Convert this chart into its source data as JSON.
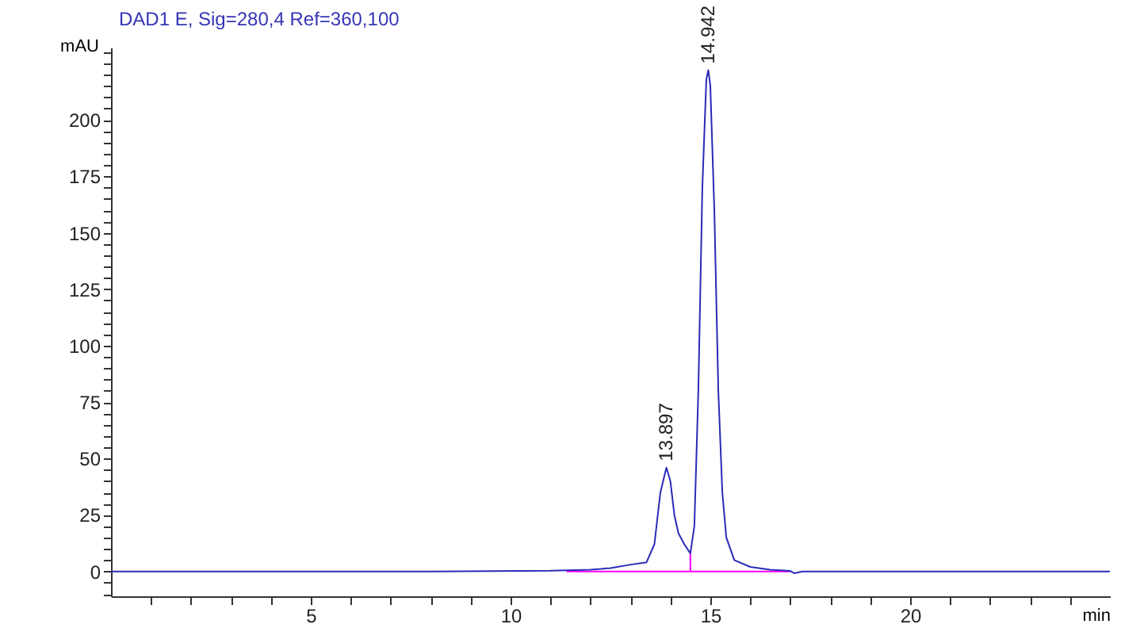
{
  "chart_data": {
    "type": "line",
    "title": "DAD1 E, Sig=280,4 Ref=360,100",
    "xlabel": "min",
    "ylabel": "mAU",
    "xlim": [
      0,
      25
    ],
    "ylim": [
      -11,
      232
    ],
    "xticks": [
      {
        "value": 1,
        "label": null
      },
      {
        "value": 2,
        "label": null
      },
      {
        "value": 3,
        "label": null
      },
      {
        "value": 4,
        "label": null
      },
      5,
      {
        "value": 6,
        "label": null
      },
      {
        "value": 7,
        "label": null
      },
      {
        "value": 8,
        "label": null
      },
      {
        "value": 9,
        "label": null
      },
      10,
      {
        "value": 11,
        "label": null
      },
      {
        "value": 12,
        "label": null
      },
      {
        "value": 13,
        "label": null
      },
      {
        "value": 14,
        "label": null
      },
      15,
      {
        "value": 16,
        "label": null
      },
      {
        "value": 17,
        "label": null
      },
      {
        "value": 18,
        "label": null
      },
      {
        "value": 19,
        "label": null
      },
      20,
      {
        "value": 21,
        "label": null
      },
      {
        "value": 22,
        "label": null
      },
      {
        "value": 23,
        "label": null
      },
      {
        "value": 24,
        "label": null
      }
    ],
    "yticks": [
      {
        "value": -10,
        "label": null
      },
      {
        "value": -5,
        "label": null
      },
      0,
      {
        "value": 5,
        "label": null
      },
      {
        "value": 10,
        "label": null
      },
      {
        "value": 15,
        "label": null
      },
      {
        "value": 20,
        "label": null
      },
      25,
      {
        "value": 30,
        "label": null
      },
      {
        "value": 35,
        "label": null
      },
      {
        "value": 40,
        "label": null
      },
      {
        "value": 45,
        "label": null
      },
      50,
      {
        "value": 55,
        "label": null
      },
      {
        "value": 60,
        "label": null
      },
      {
        "value": 65,
        "label": null
      },
      {
        "value": 70,
        "label": null
      },
      75,
      {
        "value": 80,
        "label": null
      },
      {
        "value": 85,
        "label": null
      },
      {
        "value": 90,
        "label": null
      },
      {
        "value": 95,
        "label": null
      },
      100,
      {
        "value": 105,
        "label": null
      },
      {
        "value": 110,
        "label": null
      },
      {
        "value": 115,
        "label": null
      },
      {
        "value": 120,
        "label": null
      },
      125,
      {
        "value": 130,
        "label": null
      },
      {
        "value": 135,
        "label": null
      },
      {
        "value": 140,
        "label": null
      },
      {
        "value": 145,
        "label": null
      },
      150,
      {
        "value": 155,
        "label": null
      },
      {
        "value": 160,
        "label": null
      },
      {
        "value": 165,
        "label": null
      },
      {
        "value": 170,
        "label": null
      },
      175,
      {
        "value": 180,
        "label": null
      },
      {
        "value": 185,
        "label": null
      },
      {
        "value": 190,
        "label": null
      },
      {
        "value": 195,
        "label": null
      },
      200,
      {
        "value": 205,
        "label": null
      },
      {
        "value": 210,
        "label": null
      },
      {
        "value": 215,
        "label": null
      },
      {
        "value": 220,
        "label": null
      },
      {
        "value": 225,
        "label": null
      },
      {
        "value": 230,
        "label": null
      }
    ],
    "grid": false,
    "line_style": "solid",
    "series": [
      {
        "color": "#ff00ff",
        "x": [
          11.4,
          14.5,
          14.5,
          14.5,
          17.0
        ],
        "values": [
          0,
          0,
          8,
          0,
          0
        ]
      },
      {
        "color": "#2a2ab8",
        "x": [
          0,
          8,
          11,
          12,
          12.5,
          13,
          13.4,
          13.6,
          13.75,
          13.9,
          14.0,
          14.1,
          14.2,
          14.35,
          14.5,
          14.6,
          14.7,
          14.8,
          14.9,
          14.95,
          15.0,
          15.1,
          15.2,
          15.3,
          15.4,
          15.6,
          16,
          16.5,
          17,
          17.1,
          17.3,
          25
        ],
        "values": [
          0,
          0,
          0.3,
          0.8,
          1.5,
          3,
          4,
          12,
          35,
          46,
          40,
          25,
          17,
          12,
          8,
          20,
          80,
          170,
          218,
          222,
          215,
          160,
          80,
          35,
          15,
          5,
          2,
          0.8,
          0.2,
          -0.8,
          0,
          0
        ]
      }
    ],
    "annotations": [
      {
        "text": "13.897",
        "x": 13.897,
        "y": 46
      },
      {
        "text": "14.942",
        "x": 14.942,
        "y": 222
      }
    ]
  }
}
